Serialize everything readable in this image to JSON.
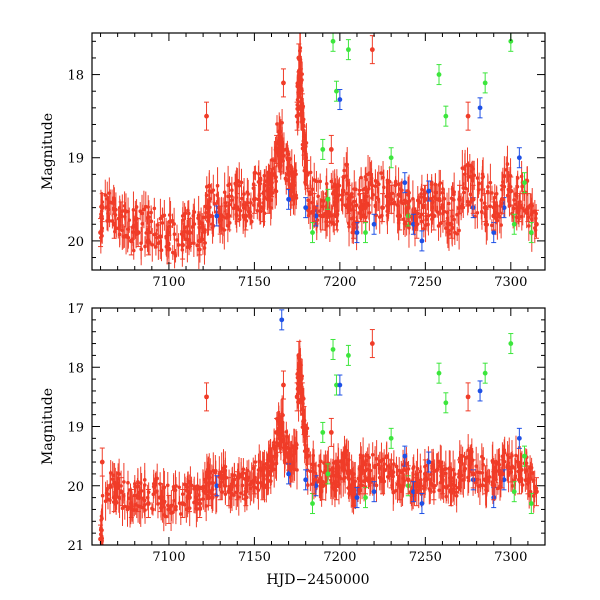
{
  "figure": {
    "xlabel": "HJD−2450000",
    "colors": {
      "red": "#f03c28",
      "green": "#3ce63c",
      "blue": "#1e50e6",
      "frame": "#000000"
    }
  },
  "chart_data": [
    {
      "type": "scatter",
      "name": "top-panel",
      "ylabel": "Magnitude",
      "xlim": [
        7055,
        7320
      ],
      "ylim": [
        20.35,
        17.5
      ],
      "xticks": [
        "7100",
        "7150",
        "7200",
        "7250",
        "7300"
      ],
      "yticks": [
        "18",
        "19",
        "20"
      ],
      "series": [
        {
          "name": "red",
          "color": "#f03c28",
          "points": [
            [
              7060,
              19.9
            ],
            [
              7061,
              19.6
            ],
            [
              7068,
              19.8
            ],
            [
              7072,
              19.7
            ],
            [
              7078,
              20.0
            ],
            [
              7082,
              19.9
            ],
            [
              7088,
              20.0
            ],
            [
              7095,
              19.95
            ],
            [
              7100,
              20.1
            ],
            [
              7108,
              20.05
            ],
            [
              7112,
              19.9
            ],
            [
              7118,
              20.0
            ],
            [
              7122,
              18.5
            ],
            [
              7124,
              19.7
            ],
            [
              7130,
              19.75
            ],
            [
              7135,
              19.7
            ],
            [
              7140,
              19.6
            ],
            [
              7145,
              19.7
            ],
            [
              7150,
              19.5
            ],
            [
              7155,
              19.6
            ],
            [
              7158,
              19.5
            ],
            [
              7160,
              19.3
            ],
            [
              7163,
              18.9
            ],
            [
              7165,
              19.0
            ],
            [
              7167,
              18.1
            ],
            [
              7170,
              19.2
            ],
            [
              7172,
              19.4
            ],
            [
              7175,
              18.5
            ],
            [
              7176,
              17.8
            ],
            [
              7177,
              18.1
            ],
            [
              7178,
              18.4
            ],
            [
              7179,
              18.8
            ],
            [
              7181,
              19.2
            ],
            [
              7185,
              19.6
            ],
            [
              7190,
              19.7
            ],
            [
              7195,
              18.9
            ],
            [
              7198,
              19.7
            ],
            [
              7202,
              19.4
            ],
            [
              7205,
              19.5
            ],
            [
              7208,
              19.8
            ],
            [
              7212,
              19.6
            ],
            [
              7215,
              19.6
            ],
            [
              7219,
              17.7
            ],
            [
              7225,
              19.6
            ],
            [
              7230,
              19.5
            ],
            [
              7235,
              19.7
            ],
            [
              7240,
              19.6
            ],
            [
              7245,
              19.8
            ],
            [
              7250,
              19.5
            ],
            [
              7255,
              19.7
            ],
            [
              7260,
              19.6
            ],
            [
              7265,
              19.8
            ],
            [
              7270,
              19.5
            ],
            [
              7275,
              18.5
            ],
            [
              7278,
              19.5
            ],
            [
              7285,
              19.6
            ],
            [
              7290,
              19.7
            ],
            [
              7295,
              19.5
            ],
            [
              7300,
              19.4
            ],
            [
              7305,
              19.6
            ],
            [
              7310,
              19.6
            ],
            [
              7315,
              19.8
            ]
          ]
        },
        {
          "name": "green",
          "color": "#3ce63c",
          "points": [
            [
              7184,
              19.9
            ],
            [
              7190,
              18.9
            ],
            [
              7193,
              19.5
            ],
            [
              7196,
              17.6
            ],
            [
              7198,
              18.2
            ],
            [
              7205,
              17.7
            ],
            [
              7215,
              19.9
            ],
            [
              7230,
              19.0
            ],
            [
              7240,
              19.7
            ],
            [
              7258,
              18.0
            ],
            [
              7262,
              18.5
            ],
            [
              7285,
              18.1
            ],
            [
              7300,
              17.6
            ],
            [
              7302,
              19.8
            ],
            [
              7308,
              19.3
            ],
            [
              7312,
              19.9
            ]
          ]
        },
        {
          "name": "blue",
          "color": "#1e50e6",
          "points": [
            [
              7128,
              19.7
            ],
            [
              7170,
              19.5
            ],
            [
              7180,
              19.6
            ],
            [
              7186,
              19.7
            ],
            [
              7200,
              18.3
            ],
            [
              7210,
              19.9
            ],
            [
              7220,
              19.8
            ],
            [
              7238,
              19.3
            ],
            [
              7243,
              19.8
            ],
            [
              7248,
              20.0
            ],
            [
              7252,
              19.4
            ],
            [
              7278,
              19.6
            ],
            [
              7282,
              18.4
            ],
            [
              7290,
              19.9
            ],
            [
              7296,
              19.6
            ],
            [
              7305,
              19.0
            ]
          ]
        }
      ]
    },
    {
      "type": "scatter",
      "name": "bottom-panel",
      "ylabel": "Magnitude",
      "xlim": [
        7055,
        7320
      ],
      "ylim": [
        21.0,
        17.0
      ],
      "xticks": [
        "7100",
        "7150",
        "7200",
        "7250",
        "7300"
      ],
      "yticks": [
        "17",
        "18",
        "19",
        "20",
        "21"
      ],
      "series": [
        {
          "name": "red",
          "color": "#f03c28",
          "points": [
            [
              7060,
              20.9
            ],
            [
              7061,
              19.6
            ],
            [
              7068,
              20.2
            ],
            [
              7072,
              20.1
            ],
            [
              7078,
              20.3
            ],
            [
              7082,
              20.2
            ],
            [
              7088,
              20.3
            ],
            [
              7095,
              20.2
            ],
            [
              7100,
              20.4
            ],
            [
              7108,
              20.3
            ],
            [
              7112,
              20.2
            ],
            [
              7118,
              20.3
            ],
            [
              7122,
              18.5
            ],
            [
              7124,
              20.1
            ],
            [
              7130,
              20.0
            ],
            [
              7135,
              20.1
            ],
            [
              7140,
              20.0
            ],
            [
              7145,
              20.1
            ],
            [
              7150,
              19.9
            ],
            [
              7155,
              20.0
            ],
            [
              7158,
              19.8
            ],
            [
              7160,
              19.6
            ],
            [
              7163,
              19.1
            ],
            [
              7165,
              19.2
            ],
            [
              7167,
              18.3
            ],
            [
              7170,
              19.5
            ],
            [
              7172,
              19.7
            ],
            [
              7175,
              18.5
            ],
            [
              7176,
              17.8
            ],
            [
              7177,
              18.2
            ],
            [
              7178,
              18.5
            ],
            [
              7179,
              18.9
            ],
            [
              7181,
              19.4
            ],
            [
              7185,
              19.9
            ],
            [
              7190,
              20.0
            ],
            [
              7195,
              19.1
            ],
            [
              7198,
              20.0
            ],
            [
              7202,
              19.7
            ],
            [
              7205,
              19.8
            ],
            [
              7208,
              20.1
            ],
            [
              7212,
              19.9
            ],
            [
              7215,
              19.9
            ],
            [
              7219,
              17.6
            ],
            [
              7225,
              19.9
            ],
            [
              7230,
              19.8
            ],
            [
              7235,
              20.0
            ],
            [
              7240,
              19.9
            ],
            [
              7245,
              20.1
            ],
            [
              7250,
              19.8
            ],
            [
              7255,
              20.0
            ],
            [
              7260,
              19.9
            ],
            [
              7265,
              20.1
            ],
            [
              7270,
              19.8
            ],
            [
              7275,
              18.5
            ],
            [
              7278,
              19.8
            ],
            [
              7285,
              19.9
            ],
            [
              7290,
              20.0
            ],
            [
              7295,
              19.8
            ],
            [
              7300,
              19.7
            ],
            [
              7305,
              19.9
            ],
            [
              7310,
              19.9
            ],
            [
              7315,
              20.1
            ]
          ]
        },
        {
          "name": "green",
          "color": "#3ce63c",
          "points": [
            [
              7184,
              20.3
            ],
            [
              7190,
              19.1
            ],
            [
              7193,
              19.8
            ],
            [
              7196,
              17.7
            ],
            [
              7198,
              18.3
            ],
            [
              7205,
              17.8
            ],
            [
              7215,
              20.2
            ],
            [
              7230,
              19.2
            ],
            [
              7240,
              20.0
            ],
            [
              7258,
              18.1
            ],
            [
              7262,
              18.6
            ],
            [
              7285,
              18.1
            ],
            [
              7300,
              17.6
            ],
            [
              7302,
              20.1
            ],
            [
              7308,
              19.5
            ],
            [
              7312,
              20.3
            ]
          ]
        },
        {
          "name": "blue",
          "color": "#1e50e6",
          "points": [
            [
              7128,
              20.0
            ],
            [
              7166,
              17.2
            ],
            [
              7170,
              19.8
            ],
            [
              7180,
              19.9
            ],
            [
              7186,
              20.0
            ],
            [
              7200,
              18.3
            ],
            [
              7210,
              20.2
            ],
            [
              7220,
              20.1
            ],
            [
              7238,
              19.5
            ],
            [
              7243,
              20.1
            ],
            [
              7248,
              20.3
            ],
            [
              7252,
              19.6
            ],
            [
              7278,
              19.9
            ],
            [
              7282,
              18.4
            ],
            [
              7290,
              20.2
            ],
            [
              7296,
              19.9
            ],
            [
              7305,
              19.2
            ]
          ]
        }
      ]
    }
  ]
}
